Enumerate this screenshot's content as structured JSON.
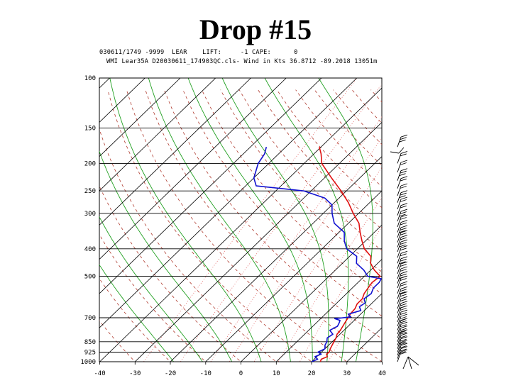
{
  "title": "Drop #15",
  "header_line1": "030611/1749 -9999  LEAR    LIFT:     -1 CAPE:      0",
  "header_line2": "WMI Lear35A D20030611_174903QC.cls- Wind in Kts 36.8712 -89.2018 13051m",
  "colors": {
    "isobar": "#000000",
    "isotherm": "#000000",
    "dry_adiabat": "#b03a2e",
    "moist_adiabat": "#22a022",
    "mixing_ratio": "#e06060",
    "temperature": "#e01010",
    "dewpoint": "#1010d0",
    "wind_barb": "#000000"
  },
  "chart_data": {
    "type": "skew-t",
    "pressure_levels": [
      100,
      150,
      200,
      250,
      300,
      400,
      500,
      700,
      850,
      925,
      1000
    ],
    "pressure_tick_labels": [
      "100",
      "150",
      "200",
      "250",
      "300",
      "400",
      "500",
      "700",
      "850",
      "925",
      "1000"
    ],
    "temperature_ticks": [
      -40,
      -30,
      -20,
      -10,
      0,
      10,
      20,
      30,
      40
    ],
    "temperature_tick_labels": [
      "-40",
      "-30",
      "-20",
      "-10",
      "0",
      "10",
      "20",
      "30",
      "40"
    ],
    "xlim": [
      -40,
      40
    ],
    "ylim": [
      1000,
      100
    ],
    "yscale": "log",
    "series": [
      {
        "name": "temperature",
        "points": [
          [
            1000,
            22.5
          ],
          [
            980,
            22.0
          ],
          [
            960,
            23.0
          ],
          [
            940,
            22.0
          ],
          [
            925,
            22.2
          ],
          [
            900,
            21.5
          ],
          [
            875,
            21.0
          ],
          [
            850,
            20.5
          ],
          [
            825,
            20.0
          ],
          [
            800,
            19.2
          ],
          [
            775,
            19.0
          ],
          [
            750,
            18.5
          ],
          [
            725,
            18.0
          ],
          [
            700,
            17.5
          ],
          [
            675,
            17.0
          ],
          [
            650,
            16.8
          ],
          [
            625,
            16.0
          ],
          [
            600,
            16.0
          ],
          [
            575,
            15.0
          ],
          [
            550,
            14.5
          ],
          [
            525,
            14.0
          ],
          [
            500,
            14.5
          ],
          [
            475,
            11.0
          ],
          [
            450,
            8.0
          ],
          [
            425,
            6.0
          ],
          [
            400,
            2.0
          ],
          [
            375,
            -1.0
          ],
          [
            350,
            -4.0
          ],
          [
            325,
            -7.0
          ],
          [
            300,
            -11.5
          ],
          [
            275,
            -16.0
          ],
          [
            250,
            -21.5
          ],
          [
            225,
            -28.0
          ],
          [
            200,
            -35.0
          ],
          [
            185,
            -38.0
          ],
          [
            175,
            -40.5
          ]
        ]
      },
      {
        "name": "dewpoint",
        "points": [
          [
            1000,
            20.0
          ],
          [
            980,
            21.0
          ],
          [
            960,
            19.5
          ],
          [
            940,
            20.5
          ],
          [
            925,
            19.0
          ],
          [
            900,
            20.0
          ],
          [
            875,
            19.0
          ],
          [
            850,
            18.5
          ],
          [
            825,
            17.5
          ],
          [
            800,
            18.0
          ],
          [
            775,
            16.0
          ],
          [
            750,
            17.0
          ],
          [
            730,
            16.5
          ],
          [
            715,
            16.0
          ],
          [
            705,
            14.0
          ],
          [
            695,
            18.0
          ],
          [
            680,
            16.5
          ],
          [
            660,
            19.0
          ],
          [
            640,
            17.5
          ],
          [
            620,
            18.0
          ],
          [
            600,
            16.5
          ],
          [
            575,
            17.0
          ],
          [
            550,
            16.0
          ],
          [
            525,
            16.0
          ],
          [
            510,
            15.5
          ],
          [
            500,
            11.0
          ],
          [
            475,
            8.0
          ],
          [
            450,
            4.0
          ],
          [
            425,
            2.0
          ],
          [
            400,
            -3.0
          ],
          [
            375,
            -6.0
          ],
          [
            350,
            -8.5
          ],
          [
            325,
            -14.0
          ],
          [
            300,
            -17.5
          ],
          [
            280,
            -20.0
          ],
          [
            265,
            -24.0
          ],
          [
            250,
            -32.0
          ],
          [
            240,
            -47.0
          ],
          [
            225,
            -50.0
          ],
          [
            200,
            -53.0
          ],
          [
            185,
            -54.0
          ],
          [
            175,
            -55.5
          ]
        ]
      }
    ],
    "wind_barbs": {
      "pressures": [
        175,
        200,
        215,
        230,
        245,
        260,
        275,
        290,
        305,
        320,
        335,
        350,
        365,
        380,
        395,
        410,
        430,
        450,
        470,
        490,
        510,
        530,
        550,
        575,
        600,
        625,
        650,
        675,
        700,
        725,
        750,
        775,
        800,
        825,
        850,
        875,
        900,
        925,
        950,
        975,
        1000
      ]
    }
  }
}
